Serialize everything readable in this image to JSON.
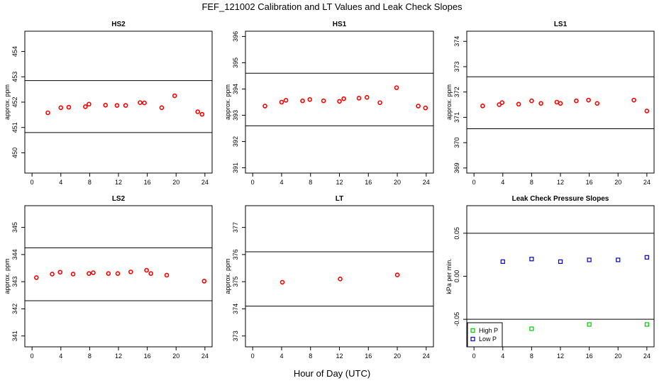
{
  "figure": {
    "title": "FEF_121002  Calibration and LT Values and Leak Check Slopes",
    "xlabel": "Hour of Day (UTC)"
  },
  "chart_data": [
    {
      "type": "scatter",
      "title": "HS2",
      "ylabel": "approx. ppm",
      "xlim": [
        -1,
        25
      ],
      "ylim": [
        449.2,
        454.8
      ],
      "xticks": [
        0,
        4,
        8,
        12,
        16,
        20,
        24
      ],
      "yticks": [
        450,
        451,
        452,
        453,
        454
      ],
      "hlines": [
        452.85,
        450.8
      ],
      "series": [
        {
          "color": "#ff0000",
          "marker": "circle",
          "x": [
            2.2,
            4.0,
            5.1,
            7.4,
            7.9,
            10.2,
            11.8,
            13.0,
            15.0,
            15.6,
            18.0,
            19.8,
            23.0,
            23.6
          ],
          "y": [
            451.58,
            451.78,
            451.8,
            451.82,
            451.92,
            451.88,
            451.87,
            451.87,
            451.98,
            451.97,
            451.78,
            452.25,
            451.62,
            451.52
          ]
        }
      ]
    },
    {
      "type": "scatter",
      "title": "HS1",
      "ylabel": "approx. ppm",
      "xlim": [
        -1,
        25
      ],
      "ylim": [
        390.8,
        396.2
      ],
      "xticks": [
        0,
        4,
        8,
        12,
        16,
        20,
        24
      ],
      "yticks": [
        391,
        392,
        393,
        394,
        395,
        396
      ],
      "hlines": [
        394.6,
        392.6
      ],
      "series": [
        {
          "color": "#ff0000",
          "marker": "circle",
          "x": [
            1.7,
            4.0,
            4.6,
            6.9,
            7.9,
            9.8,
            12.0,
            12.6,
            14.7,
            15.8,
            17.6,
            19.9,
            22.9,
            23.9
          ],
          "y": [
            393.35,
            393.5,
            393.57,
            393.55,
            393.6,
            393.55,
            393.53,
            393.63,
            393.65,
            393.68,
            393.48,
            394.05,
            393.35,
            393.28
          ]
        }
      ]
    },
    {
      "type": "scatter",
      "title": "LS1",
      "ylabel": "approx. ppm",
      "xlim": [
        -1,
        25
      ],
      "ylim": [
        368.8,
        374.4
      ],
      "xticks": [
        0,
        4,
        8,
        12,
        16,
        20,
        24
      ],
      "yticks": [
        369,
        370,
        371,
        372,
        373,
        374
      ],
      "hlines": [
        372.6,
        370.55
      ],
      "series": [
        {
          "color": "#ff0000",
          "marker": "circle",
          "x": [
            1.2,
            3.5,
            3.9,
            6.2,
            8.0,
            9.3,
            11.5,
            12.0,
            14.2,
            15.9,
            17.1,
            22.2,
            24.0
          ],
          "y": [
            371.45,
            371.5,
            371.58,
            371.52,
            371.65,
            371.55,
            371.6,
            371.55,
            371.65,
            371.68,
            371.55,
            371.68,
            371.25
          ]
        }
      ]
    },
    {
      "type": "scatter",
      "title": "LS2",
      "ylabel": "approx. ppm",
      "xlim": [
        -1,
        25
      ],
      "ylim": [
        340.6,
        345.8
      ],
      "xticks": [
        0,
        4,
        8,
        12,
        16,
        20,
        24
      ],
      "yticks": [
        341,
        342,
        343,
        344,
        345
      ],
      "hlines": [
        344.25,
        342.3
      ],
      "series": [
        {
          "color": "#ff0000",
          "marker": "circle",
          "x": [
            0.6,
            2.8,
            3.9,
            5.7,
            7.9,
            8.5,
            10.6,
            11.9,
            13.7,
            15.9,
            16.5,
            18.7,
            23.9
          ],
          "y": [
            343.15,
            343.28,
            343.35,
            343.28,
            343.3,
            343.33,
            343.3,
            343.3,
            343.36,
            343.42,
            343.3,
            343.24,
            343.02
          ]
        }
      ]
    },
    {
      "type": "scatter",
      "title": "LT",
      "ylabel": "approx. ppm",
      "xlim": [
        -1,
        25
      ],
      "ylim": [
        372.6,
        377.8
      ],
      "xticks": [
        0,
        4,
        8,
        12,
        16,
        20,
        24
      ],
      "yticks": [
        373,
        374,
        375,
        376,
        377
      ],
      "hlines": [
        376.1,
        374.1
      ],
      "series": [
        {
          "color": "#ff0000",
          "marker": "circle",
          "x": [
            4.1,
            12.1,
            20.0
          ],
          "y": [
            374.98,
            375.1,
            375.25
          ]
        }
      ]
    },
    {
      "type": "scatter",
      "title": "Leak Check Pressure Slopes",
      "ylabel": "kPa per min.",
      "xlim": [
        -1,
        25
      ],
      "ylim": [
        -0.082,
        0.082
      ],
      "xticks": [
        0,
        4,
        8,
        12,
        16,
        20,
        24
      ],
      "yticks": [
        -0.05,
        0.0,
        0.05
      ],
      "ytick_labels": [
        "-0.05",
        "0.00",
        "0.05"
      ],
      "hlines": [
        0.05,
        -0.05
      ],
      "legend": "bottom-left",
      "series": [
        {
          "name": "High P",
          "color": "#00cc00",
          "marker": "square",
          "x": [
            8.0,
            16.0,
            24.0
          ],
          "y": [
            -0.061,
            -0.056,
            -0.056
          ]
        },
        {
          "name": "Low P",
          "color": "#0000cc",
          "marker": "square",
          "x": [
            4.0,
            8.0,
            12.0,
            16.0,
            20.0,
            24.0
          ],
          "y": [
            0.017,
            0.02,
            0.017,
            0.019,
            0.019,
            0.022
          ]
        }
      ]
    }
  ]
}
